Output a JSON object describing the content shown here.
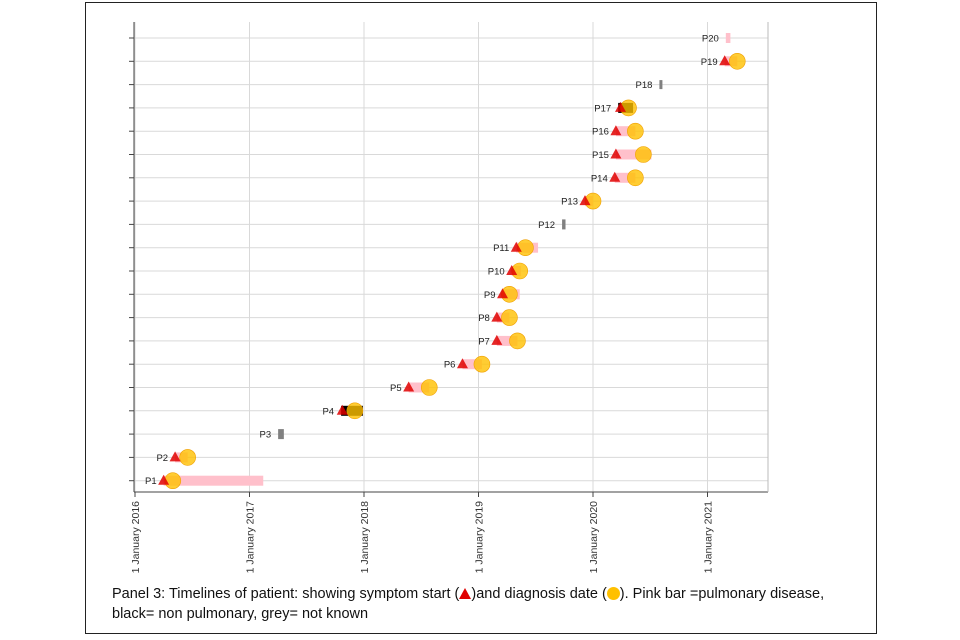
{
  "chart_data": {
    "type": "timeline",
    "title": "Panel 3: Timelines of patient",
    "x_axis": {
      "ticks": [
        "1 January 2016",
        "1 January 2017",
        "1 January 2018",
        "1 January 2019",
        "1 January 2020",
        "1 January 2021"
      ],
      "range": [
        2016.0,
        2021.55
      ]
    },
    "patients": [
      {
        "label": "P1",
        "bar_start": 2016.25,
        "bar_end": 2017.12,
        "bar_type": "pulmonary",
        "symptom": 2016.25,
        "diagnosis": 2016.33
      },
      {
        "label": "P2",
        "bar_start": 2016.35,
        "bar_end": 2016.46,
        "bar_type": "pulmonary",
        "symptom": 2016.35,
        "diagnosis": 2016.46
      },
      {
        "label": "P3",
        "bar_start": 2017.25,
        "bar_end": 2017.3,
        "bar_type": "unknown"
      },
      {
        "label": "P4",
        "bar_start": 2017.8,
        "bar_end": 2017.99,
        "bar_type": "non_pulmonary",
        "symptom": 2017.81,
        "diagnosis": 2017.92
      },
      {
        "label": "P5",
        "bar_start": 2018.39,
        "bar_end": 2018.57,
        "bar_type": "pulmonary",
        "symptom": 2018.39,
        "diagnosis": 2018.57
      },
      {
        "label": "P6",
        "bar_start": 2018.86,
        "bar_end": 2019.03,
        "bar_type": "pulmonary",
        "symptom": 2018.86,
        "diagnosis": 2019.03
      },
      {
        "label": "P7",
        "bar_start": 2019.16,
        "bar_end": 2019.34,
        "bar_type": "pulmonary",
        "symptom": 2019.16,
        "diagnosis": 2019.34
      },
      {
        "label": "P8",
        "bar_start": 2019.16,
        "bar_end": 2019.27,
        "bar_type": "pulmonary",
        "symptom": 2019.16,
        "diagnosis": 2019.27
      },
      {
        "label": "P9",
        "bar_start": 2019.21,
        "bar_end": 2019.36,
        "bar_type": "pulmonary",
        "symptom": 2019.21,
        "diagnosis": 2019.27
      },
      {
        "label": "P10",
        "bar_start": 2019.29,
        "bar_end": 2019.37,
        "bar_type": "pulmonary",
        "symptom": 2019.29,
        "diagnosis": 2019.36
      },
      {
        "label": "P11",
        "bar_start": 2019.33,
        "bar_end": 2019.52,
        "bar_type": "pulmonary",
        "symptom": 2019.33,
        "diagnosis": 2019.41
      },
      {
        "label": "P12",
        "bar_start": 2019.73,
        "bar_end": 2019.76,
        "bar_type": "unknown"
      },
      {
        "label": "P13",
        "bar_start": 2019.93,
        "bar_end": 2020.0,
        "bar_type": "pulmonary",
        "symptom": 2019.93,
        "diagnosis": 2020.0
      },
      {
        "label": "P14",
        "bar_start": 2020.19,
        "bar_end": 2020.37,
        "bar_type": "pulmonary",
        "symptom": 2020.19,
        "diagnosis": 2020.37
      },
      {
        "label": "P15",
        "bar_start": 2020.2,
        "bar_end": 2020.51,
        "bar_type": "pulmonary",
        "symptom": 2020.2,
        "diagnosis": 2020.44
      },
      {
        "label": "P16",
        "bar_start": 2020.2,
        "bar_end": 2020.37,
        "bar_type": "pulmonary",
        "symptom": 2020.2,
        "diagnosis": 2020.37
      },
      {
        "label": "P17",
        "bar_start": 2020.22,
        "bar_end": 2020.35,
        "bar_type": "non_pulmonary",
        "symptom": 2020.24,
        "diagnosis": 2020.31
      },
      {
        "label": "P18",
        "bar_start": 2020.58,
        "bar_end": 2020.59,
        "bar_type": "unknown"
      },
      {
        "label": "P19",
        "bar_start": 2021.15,
        "bar_end": 2021.26,
        "bar_type": "pulmonary",
        "symptom": 2021.15,
        "diagnosis": 2021.26
      },
      {
        "label": "P20",
        "bar_start": 2021.16,
        "bar_end": 2021.2,
        "bar_type": "pulmonary"
      }
    ],
    "colors": {
      "pulmonary": "#ffc0cb",
      "non_pulmonary": "#000000",
      "unknown": "#808080",
      "symptom_marker": "#e00000",
      "diagnosis_marker": "#ffc000",
      "grid": "#d9d9d9",
      "axis": "#444444"
    }
  },
  "caption": {
    "part1": "Panel 3: Timelines of patient: showing symptom start (",
    "part2": ")and diagnosis date  (",
    "part3": "). Pink bar =pulmonary disease, black= non pulmonary, grey= not known"
  }
}
